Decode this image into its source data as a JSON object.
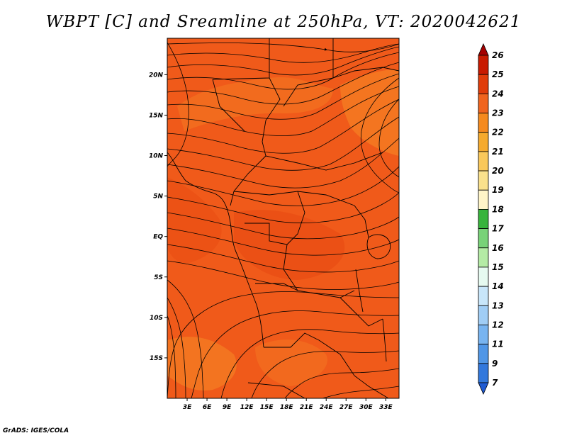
{
  "title": "WBPT [C] and Sreamline at 250hPa, VT: 2020042621",
  "credit": "GrADS: IGES/COLA",
  "map": {
    "lat_labels": [
      {
        "label": "20N",
        "lat": 20
      },
      {
        "label": "15N",
        "lat": 15
      },
      {
        "label": "10N",
        "lat": 10
      },
      {
        "label": "5N",
        "lat": 5
      },
      {
        "label": "EQ",
        "lat": 0
      },
      {
        "label": "5S",
        "lat": -5
      },
      {
        "label": "10S",
        "lat": -10
      },
      {
        "label": "15S",
        "lat": -15
      }
    ],
    "lon_labels": [
      {
        "label": "3E",
        "lon": 3
      },
      {
        "label": "6E",
        "lon": 6
      },
      {
        "label": "9E",
        "lon": 9
      },
      {
        "label": "12E",
        "lon": 12
      },
      {
        "label": "15E",
        "lon": 15
      },
      {
        "label": "18E",
        "lon": 18
      },
      {
        "label": "21E",
        "lon": 21
      },
      {
        "label": "24E",
        "lon": 24
      },
      {
        "label": "27E",
        "lon": 27
      },
      {
        "label": "30E",
        "lon": 30
      },
      {
        "label": "33E",
        "lon": 33
      }
    ],
    "lon_range": [
      0,
      35
    ],
    "lat_range": [
      -20,
      24.5
    ],
    "base_color": "#f05a1a"
  },
  "colorbar": {
    "labels": [
      "26",
      "25",
      "24",
      "23",
      "22",
      "21",
      "20",
      "19",
      "18",
      "17",
      "16",
      "15",
      "14",
      "13",
      "12",
      "11",
      "9",
      "7"
    ],
    "colors": [
      "#a50000",
      "#c81a00",
      "#e03c0a",
      "#f0641e",
      "#f58a1e",
      "#f5aa2d",
      "#fac85a",
      "#fae18c",
      "#fff5c8",
      "#37b43c",
      "#78d278",
      "#b4eba5",
      "#e6faf0",
      "#c8e6fa",
      "#a0cdf5",
      "#78b4f0",
      "#5096e6",
      "#3278dc",
      "#1e5ad2"
    ]
  }
}
